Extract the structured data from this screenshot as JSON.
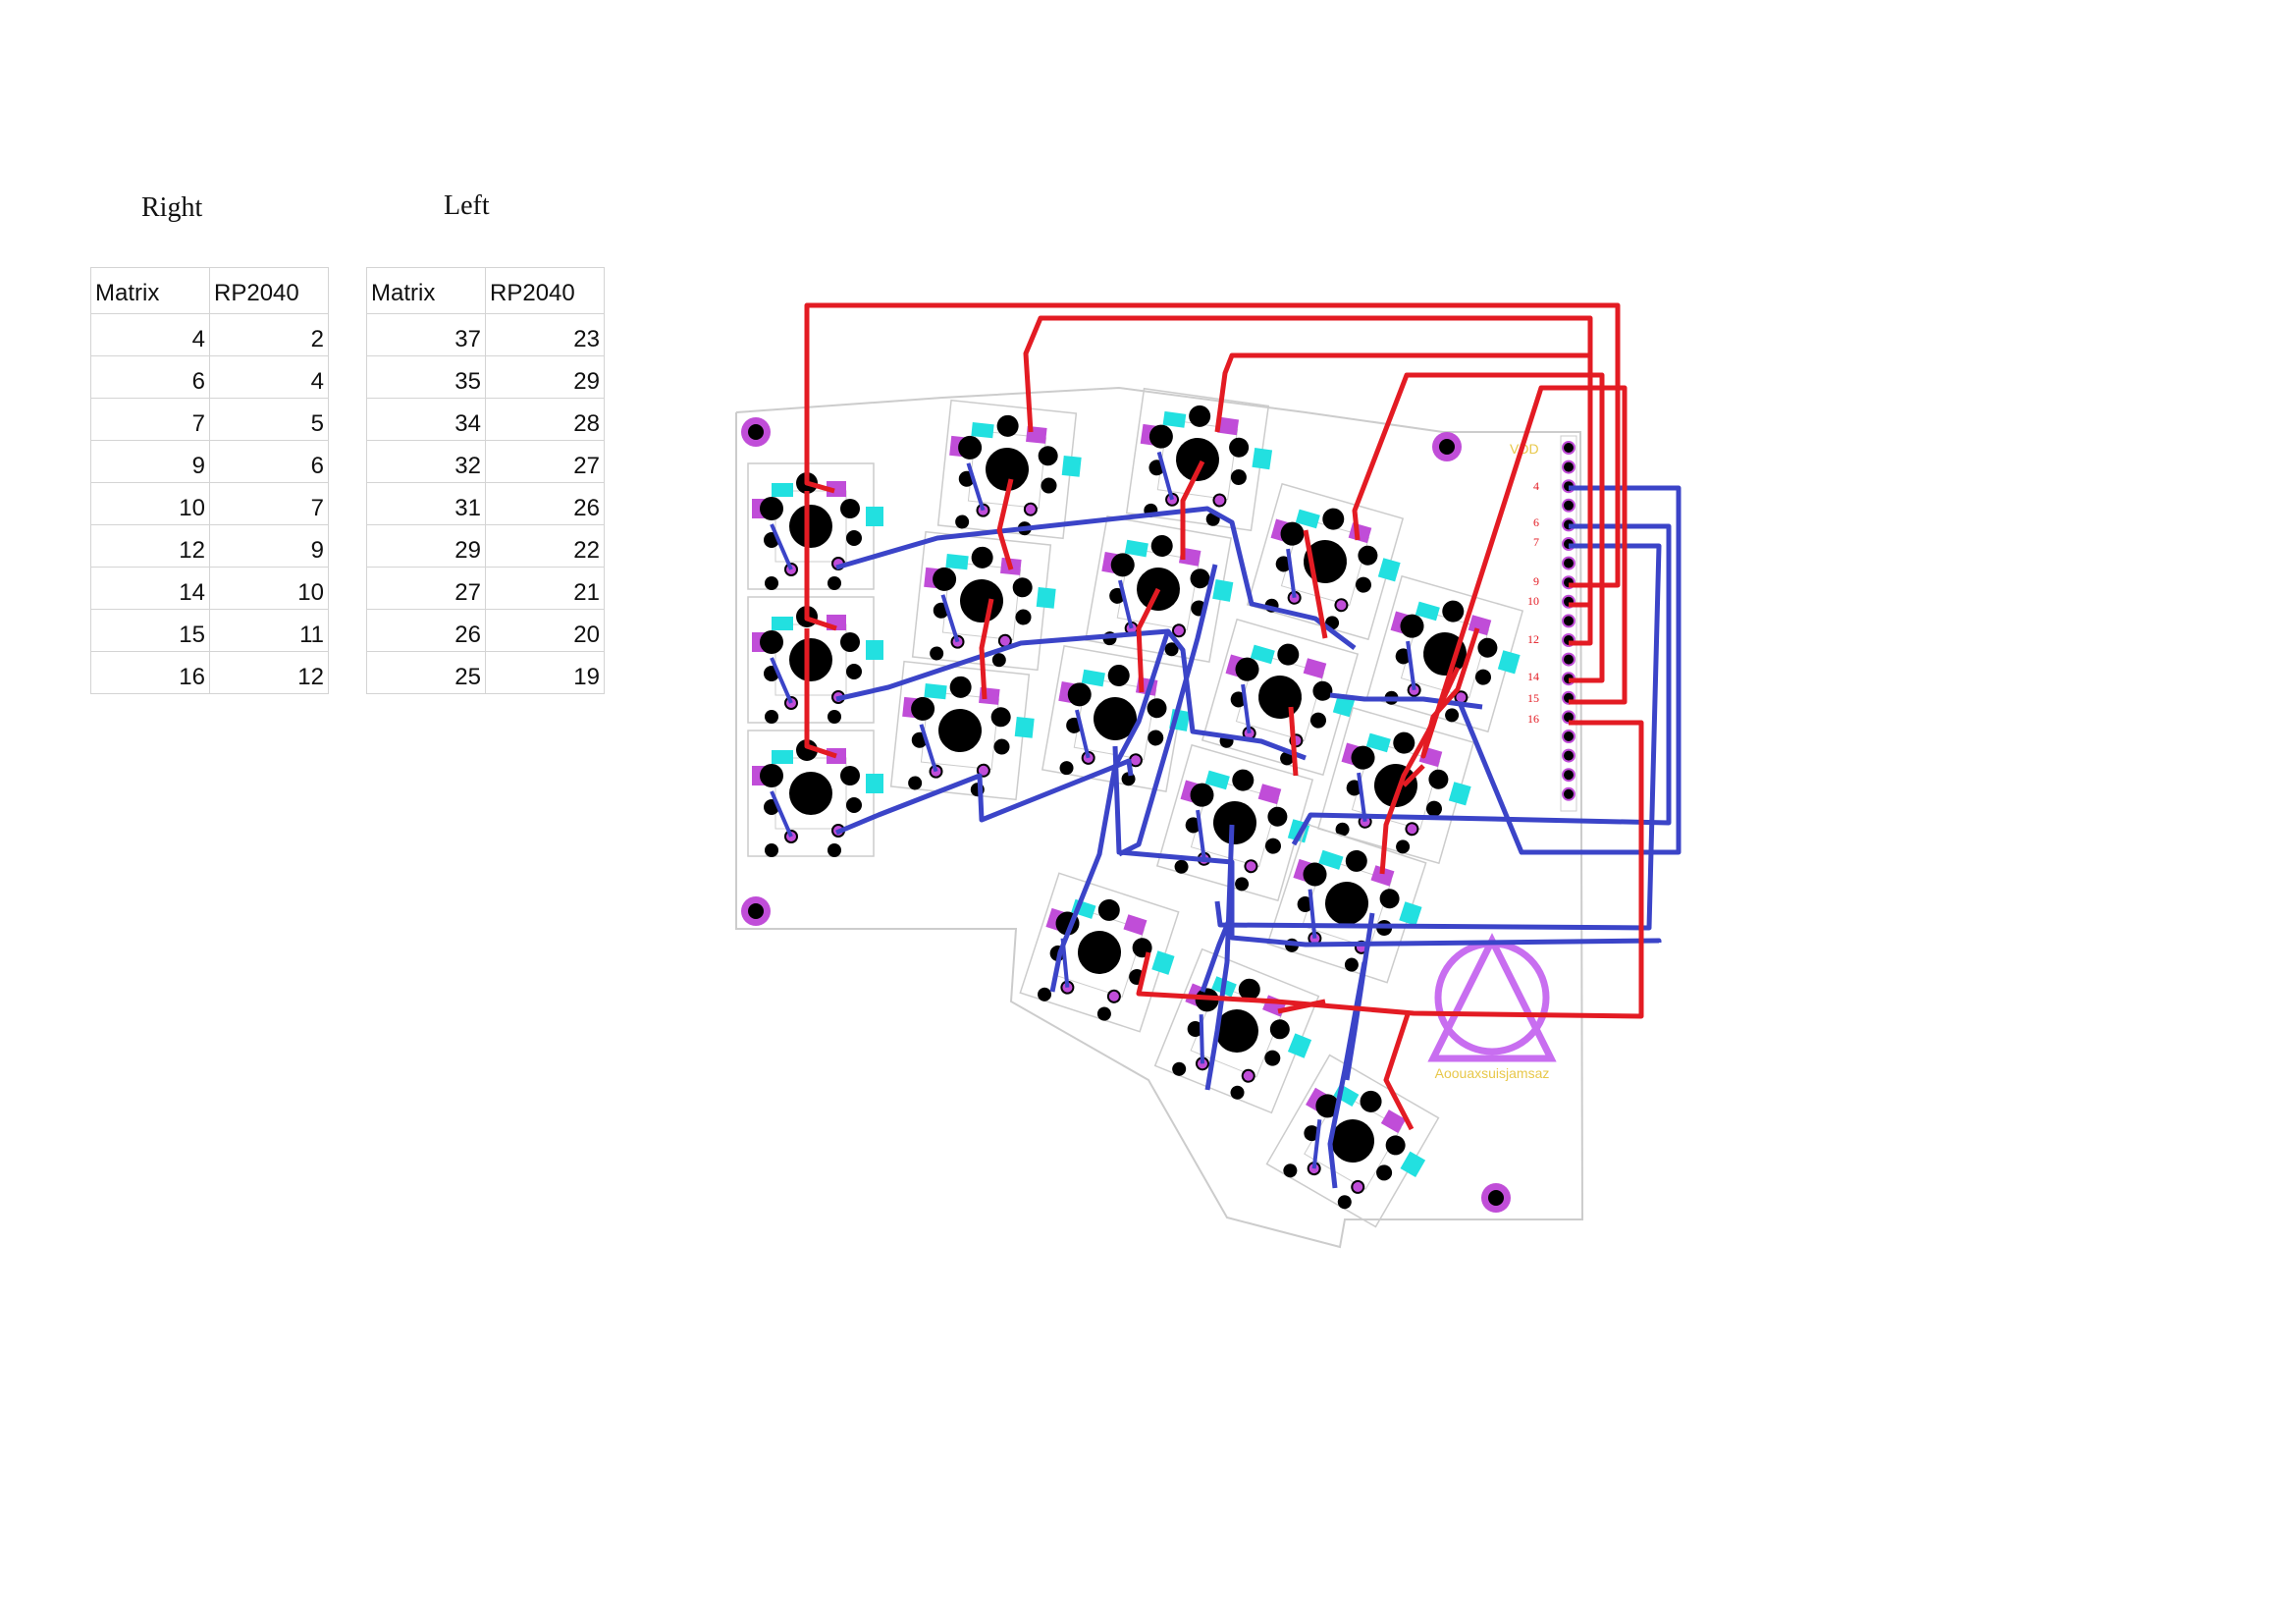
{
  "right": {
    "title": "Right",
    "headers": [
      "Matrix",
      "RP2040"
    ],
    "rows": [
      [
        "4",
        "2"
      ],
      [
        "6",
        "4"
      ],
      [
        "7",
        "5"
      ],
      [
        "9",
        "6"
      ],
      [
        "10",
        "7"
      ],
      [
        "12",
        "9"
      ],
      [
        "14",
        "10"
      ],
      [
        "15",
        "11"
      ],
      [
        "16",
        "12"
      ]
    ]
  },
  "left": {
    "title": "Left",
    "headers": [
      "Matrix",
      "RP2040"
    ],
    "rows": [
      [
        "37",
        "23"
      ],
      [
        "35",
        "29"
      ],
      [
        "34",
        "28"
      ],
      [
        "32",
        "27"
      ],
      [
        "31",
        "26"
      ],
      [
        "29",
        "22"
      ],
      [
        "27",
        "21"
      ],
      [
        "26",
        "20"
      ],
      [
        "25",
        "19"
      ]
    ]
  },
  "pcb": {
    "header_label": "VDD",
    "pin_labels": [
      "4",
      "6",
      "7",
      "9",
      "10",
      "12",
      "14",
      "15",
      "16"
    ],
    "logo_text": "Aoouaxsuisjamsaz",
    "colors": {
      "row_wire": "#e31b23",
      "col_wire": "#3b44c8",
      "pad": "#c04dd8",
      "cyan_pad": "#22e0e0",
      "silkscreen": "#cccccc",
      "logo": "#c86ef0",
      "logo_text": "#e8c84a"
    }
  }
}
